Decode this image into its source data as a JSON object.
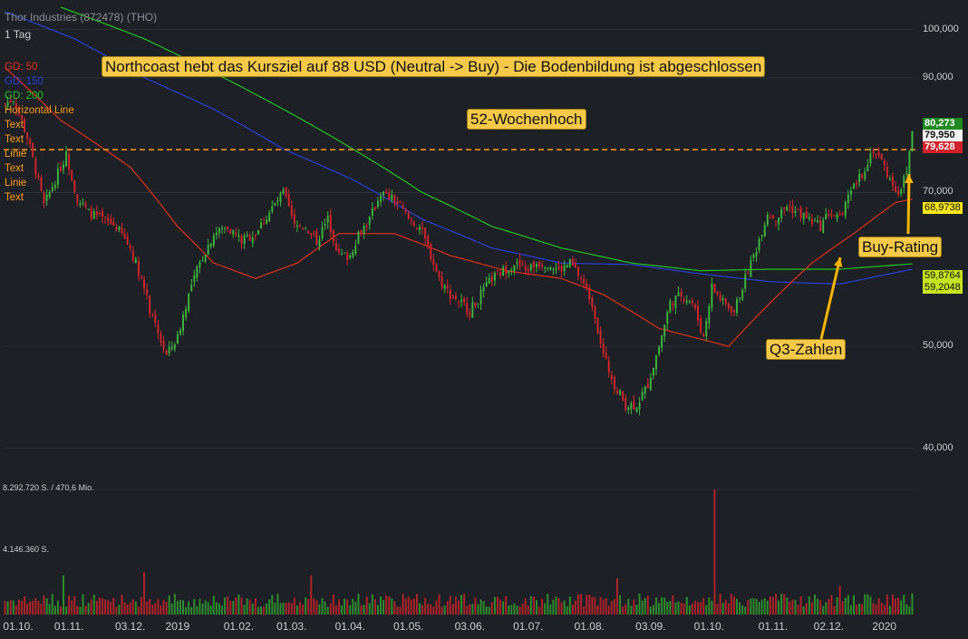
{
  "header": {
    "title": "Thor Industries (872478) (THO)",
    "interval": "1 Tag",
    "legend": [
      {
        "label": "GD: 50",
        "color": "#e0301e"
      },
      {
        "label": "GD: 150",
        "color": "#2b3fd6"
      },
      {
        "label": "GD: 200",
        "color": "#22c422"
      },
      {
        "label": "Horizontal Line",
        "color": "#ff9c1a"
      },
      {
        "label": "Text",
        "color": "#ff9c1a"
      },
      {
        "label": "Text",
        "color": "#ff9c1a"
      },
      {
        "label": "Linie",
        "color": "#ff9c1a"
      },
      {
        "label": "Text",
        "color": "#ff9c1a"
      },
      {
        "label": "Linie",
        "color": "#ff9c1a"
      },
      {
        "label": "Text",
        "color": "#ff9c1a"
      }
    ]
  },
  "annotations": {
    "headline": "Northcoast hebt das Kursziel auf 88 USD (Neutral -> Buy) - Die Bodenbildung ist abgeschlossen",
    "high52": "52-Wochenhoch",
    "q3": "Q3-Zahlen",
    "buy": "Buy-Rating"
  },
  "volume": {
    "max_label": "8.292.720 S. / 470,6 Mio.",
    "mid_label": "4.146.360 S."
  },
  "price_boxes": {
    "last": "80,273",
    "high": "79,950",
    "line": "79,628",
    "gd50": "68,9738",
    "gd200": "59,8764",
    "gd150": "59,2048"
  },
  "chart_data": {
    "type": "candlestick",
    "y_scale": "log",
    "ylim": [
      37,
      105
    ],
    "y_ticks": [
      "100,000",
      "90,000",
      "70,000",
      "50,000",
      "40,000"
    ],
    "y_tick_values": [
      100,
      90,
      70,
      50,
      40
    ],
    "x_ticks": [
      "01.10.",
      "01.11.",
      "03.12.",
      "2019",
      "01.02.",
      "01.03.",
      "01.04.",
      "01.05.",
      "03.06.",
      "01.07.",
      "01.08.",
      "03.09.",
      "01.10.",
      "01.11.",
      "02.12.",
      "2020"
    ],
    "x_tick_index": [
      0,
      23,
      45,
      62,
      84,
      103,
      124,
      145,
      167,
      188,
      210,
      232,
      253,
      276,
      296,
      316
    ],
    "horizontal_line": 76.9,
    "close_anchors": [
      [
        0,
        85
      ],
      [
        3,
        86
      ],
      [
        8,
        79
      ],
      [
        14,
        68
      ],
      [
        18,
        72
      ],
      [
        22,
        76
      ],
      [
        26,
        69
      ],
      [
        30,
        67
      ],
      [
        35,
        66
      ],
      [
        40,
        65
      ],
      [
        45,
        62
      ],
      [
        49,
        58
      ],
      [
        53,
        53
      ],
      [
        58,
        49
      ],
      [
        62,
        51
      ],
      [
        66,
        56
      ],
      [
        70,
        60
      ],
      [
        75,
        64
      ],
      [
        80,
        65
      ],
      [
        85,
        63
      ],
      [
        90,
        64
      ],
      [
        95,
        67
      ],
      [
        100,
        70
      ],
      [
        104,
        65
      ],
      [
        108,
        65
      ],
      [
        112,
        63
      ],
      [
        116,
        66
      ],
      [
        120,
        61
      ],
      [
        124,
        61
      ],
      [
        127,
        64
      ],
      [
        131,
        66
      ],
      [
        135,
        70
      ],
      [
        139,
        69
      ],
      [
        142,
        68
      ],
      [
        145,
        66
      ],
      [
        149,
        65
      ],
      [
        153,
        61
      ],
      [
        156,
        58
      ],
      [
        160,
        56
      ],
      [
        164,
        55
      ],
      [
        167,
        54
      ],
      [
        171,
        56
      ],
      [
        175,
        58
      ],
      [
        179,
        59
      ],
      [
        183,
        60
      ],
      [
        187,
        59
      ],
      [
        191,
        60
      ],
      [
        195,
        60
      ],
      [
        199,
        59
      ],
      [
        203,
        60
      ],
      [
        207,
        58
      ],
      [
        211,
        55
      ],
      [
        215,
        49
      ],
      [
        219,
        46
      ],
      [
        223,
        44
      ],
      [
        227,
        44
      ],
      [
        231,
        46
      ],
      [
        235,
        50
      ],
      [
        239,
        55
      ],
      [
        243,
        56
      ],
      [
        247,
        55
      ],
      [
        251,
        51
      ],
      [
        254,
        57
      ],
      [
        258,
        55
      ],
      [
        262,
        54
      ],
      [
        266,
        58
      ],
      [
        270,
        62
      ],
      [
        274,
        67
      ],
      [
        277,
        66
      ],
      [
        281,
        68
      ],
      [
        285,
        67
      ],
      [
        289,
        66
      ],
      [
        293,
        65
      ],
      [
        296,
        67
      ],
      [
        300,
        66
      ],
      [
        304,
        70
      ],
      [
        308,
        73
      ],
      [
        312,
        77
      ],
      [
        315,
        75
      ],
      [
        318,
        72
      ],
      [
        321,
        70
      ],
      [
        324,
        73
      ],
      [
        326,
        80.3
      ]
    ],
    "gd50_anchors": [
      [
        0,
        92
      ],
      [
        20,
        82
      ],
      [
        45,
        74
      ],
      [
        62,
        65
      ],
      [
        75,
        60
      ],
      [
        90,
        58
      ],
      [
        105,
        60
      ],
      [
        120,
        64
      ],
      [
        140,
        64
      ],
      [
        160,
        61
      ],
      [
        180,
        59
      ],
      [
        200,
        58
      ],
      [
        215,
        56
      ],
      [
        235,
        52
      ],
      [
        260,
        50
      ],
      [
        275,
        55
      ],
      [
        290,
        60
      ],
      [
        305,
        64
      ],
      [
        320,
        68.5
      ],
      [
        326,
        69
      ]
    ],
    "gd150_anchors": [
      [
        0,
        104
      ],
      [
        25,
        98
      ],
      [
        50,
        90
      ],
      [
        75,
        84
      ],
      [
        100,
        77
      ],
      [
        125,
        72
      ],
      [
        150,
        66
      ],
      [
        175,
        62
      ],
      [
        200,
        60
      ],
      [
        225,
        59.8
      ],
      [
        250,
        58.6
      ],
      [
        275,
        57.6
      ],
      [
        300,
        57.3
      ],
      [
        326,
        59.2
      ]
    ],
    "gd200_anchors": [
      [
        20,
        105
      ],
      [
        50,
        98
      ],
      [
        75,
        91
      ],
      [
        100,
        84
      ],
      [
        125,
        77
      ],
      [
        150,
        70
      ],
      [
        175,
        65
      ],
      [
        200,
        62
      ],
      [
        225,
        60
      ],
      [
        250,
        59
      ],
      [
        275,
        59.2
      ],
      [
        300,
        59.2
      ],
      [
        326,
        59.9
      ]
    ],
    "volume_max": 8292720,
    "volume_spikes": [
      [
        21,
        2600000
      ],
      [
        50,
        2800000
      ],
      [
        110,
        2600000
      ],
      [
        220,
        2400000
      ],
      [
        255,
        8292720
      ],
      [
        300,
        1900000
      ],
      [
        326,
        1400000
      ]
    ]
  }
}
